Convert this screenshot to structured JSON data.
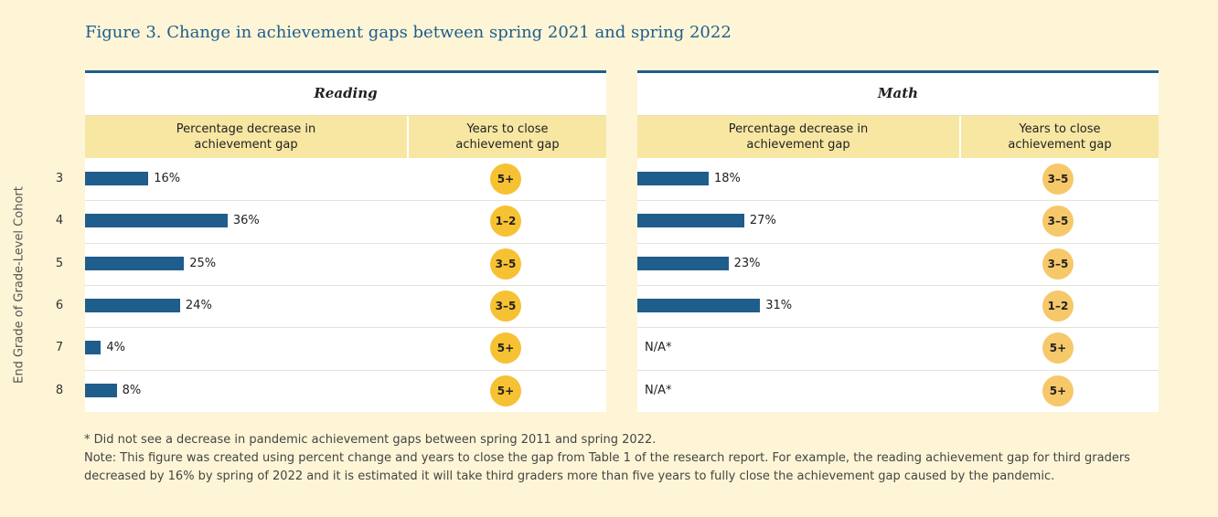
{
  "title": "Figure 3. Change in achievement gaps between spring 2021 and spring 2022",
  "y_axis_label": "End Grade of Grade-Level Cohort",
  "column_headers": {
    "percentage": "Percentage decrease in achievement gap",
    "years": "Years to close achievement gap"
  },
  "chart_data": {
    "type": "bar",
    "categories": [
      "3",
      "4",
      "5",
      "6",
      "7",
      "8"
    ],
    "ylabel": "End Grade of Grade-Level Cohort",
    "panels": [
      {
        "subject": "Reading",
        "values": [
          16,
          36,
          25,
          24,
          4,
          8
        ],
        "labels": [
          "16%",
          "36%",
          "25%",
          "24%",
          "4%",
          "8%"
        ],
        "years_to_close": [
          "5+",
          "1–2",
          "3–5",
          "3–5",
          "5+",
          "5+"
        ]
      },
      {
        "subject": "Math",
        "values": [
          18,
          27,
          23,
          31,
          null,
          null
        ],
        "labels": [
          "18%",
          "27%",
          "23%",
          "31%",
          "N/A*",
          "N/A*"
        ],
        "years_to_close": [
          "3–5",
          "3–5",
          "3–5",
          "1–2",
          "5+",
          "5+"
        ]
      }
    ]
  },
  "footnotes": [
    "* Did not see a decrease in pandemic achievement gaps between spring 2011 and spring 2022.",
    "Note: This figure was created using percent change and years to close the gap from Table 1 of the research report. For example, the reading achievement gap for third graders decreased by 16% by spring of 2022 and it is estimated it will take third graders more than five years to fully close the achievement gap caused by the pandemic."
  ],
  "colors": {
    "background": "#fdf5d6",
    "bar": "#1f5d8c",
    "header_fill": "#f7e7a3",
    "badge_reading": "#f6c233",
    "badge_math": "#f6c86a"
  }
}
